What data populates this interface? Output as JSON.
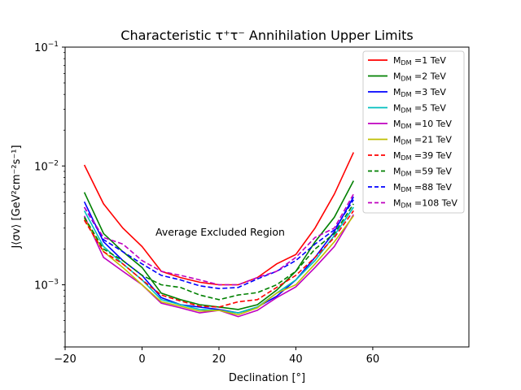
{
  "chart_data": {
    "type": "line",
    "title": "Characteristic τ⁺τ⁻ Annihilation Upper Limits",
    "xlabel": "Declination [°]",
    "ylabel": "J⟨σv⟩   [GeV²cm⁻²s⁻¹]",
    "xlim": [
      -20,
      85
    ],
    "ylim": [
      0.0003,
      0.1
    ],
    "yscale": "log",
    "xticks": [
      -20,
      0,
      20,
      40,
      60
    ],
    "xtick_labels": [
      "−20",
      "0",
      "20",
      "40",
      "60"
    ],
    "yticks": [
      0.001,
      0.01,
      0.1
    ],
    "ytick_labels": [
      {
        "base": "10",
        "exp": "−3"
      },
      {
        "base": "10",
        "exp": "−2"
      },
      {
        "base": "10",
        "exp": "−1"
      }
    ],
    "grid": false,
    "legend_position": "upper-right",
    "annotation": "Average Excluded Region",
    "x": [
      -15,
      -10,
      -5,
      0,
      5,
      10,
      15,
      20,
      25,
      30,
      35,
      40,
      45,
      50,
      55
    ],
    "series": [
      {
        "name_prefix": "M",
        "name_sub": "DM",
        "name_suffix": " =1 TeV",
        "color": "#ff0000",
        "dash": "solid",
        "values": [
          0.0102,
          0.0048,
          0.003,
          0.0021,
          0.0013,
          0.00115,
          0.00105,
          0.001,
          0.001,
          0.00115,
          0.0015,
          0.0018,
          0.003,
          0.0058,
          0.013
        ]
      },
      {
        "name_prefix": "M",
        "name_sub": "DM",
        "name_suffix": " =2 TeV",
        "color": "#008000",
        "dash": "solid",
        "values": [
          0.006,
          0.0027,
          0.0019,
          0.0014,
          0.00085,
          0.00075,
          0.00068,
          0.00065,
          0.00062,
          0.00068,
          0.0009,
          0.0013,
          0.0023,
          0.0037,
          0.0075
        ]
      },
      {
        "name_prefix": "M",
        "name_sub": "DM",
        "name_suffix": " =3 TeV",
        "color": "#0000ff",
        "dash": "solid",
        "values": [
          0.005,
          0.0023,
          0.0016,
          0.0012,
          0.00078,
          0.00068,
          0.00065,
          0.00062,
          0.00058,
          0.00065,
          0.0008,
          0.0011,
          0.0017,
          0.0028,
          0.0055
        ]
      },
      {
        "name_prefix": "M",
        "name_sub": "DM",
        "name_suffix": " =5 TeV",
        "color": "#00bfbf",
        "dash": "solid",
        "values": [
          0.0042,
          0.0021,
          0.0015,
          0.0011,
          0.00075,
          0.00068,
          0.00062,
          0.00061,
          0.00058,
          0.00065,
          0.00085,
          0.0011,
          0.0016,
          0.0026,
          0.0045
        ]
      },
      {
        "name_prefix": "M",
        "name_sub": "DM",
        "name_suffix": " =10 TeV",
        "color": "#bf00bf",
        "dash": "solid",
        "values": [
          0.0038,
          0.0017,
          0.0013,
          0.001,
          0.0007,
          0.00064,
          0.00058,
          0.00061,
          0.00054,
          0.00061,
          0.00078,
          0.00096,
          0.0014,
          0.0021,
          0.0039
        ]
      },
      {
        "name_prefix": "M",
        "name_sub": "DM",
        "name_suffix": " =21 TeV",
        "color": "#bfbf00",
        "dash": "solid",
        "values": [
          0.0036,
          0.0019,
          0.0014,
          0.001,
          0.00072,
          0.00066,
          0.0006,
          0.00061,
          0.00056,
          0.00064,
          0.00085,
          0.001,
          0.0015,
          0.0023,
          0.0038
        ]
      },
      {
        "name_prefix": "M",
        "name_sub": "DM",
        "name_suffix": " =39 TeV",
        "color": "#ff0000",
        "dash": "dashed",
        "values": [
          0.0035,
          0.0019,
          0.0015,
          0.0011,
          0.00082,
          0.00073,
          0.00066,
          0.00065,
          0.00072,
          0.00075,
          0.00095,
          0.0012,
          0.0017,
          0.0025,
          0.0042
        ]
      },
      {
        "name_prefix": "M",
        "name_sub": "DM",
        "name_suffix": " =59 TeV",
        "color": "#008000",
        "dash": "dashed",
        "values": [
          0.0037,
          0.002,
          0.0016,
          0.0012,
          0.001,
          0.00095,
          0.00082,
          0.00075,
          0.00082,
          0.00086,
          0.001,
          0.0013,
          0.002,
          0.0027,
          0.0048
        ]
      },
      {
        "name_prefix": "M",
        "name_sub": "DM",
        "name_suffix": " =88 TeV",
        "color": "#0000ff",
        "dash": "dashed",
        "values": [
          0.0045,
          0.0024,
          0.0019,
          0.0015,
          0.0012,
          0.0011,
          0.00098,
          0.00093,
          0.00095,
          0.00112,
          0.0013,
          0.0016,
          0.0022,
          0.0029,
          0.0052
        ]
      },
      {
        "name_prefix": "M",
        "name_sub": "DM",
        "name_suffix": " =108 TeV",
        "color": "#bf00bf",
        "dash": "dashed",
        "values": [
          0.0045,
          0.0025,
          0.0022,
          0.0016,
          0.0013,
          0.0012,
          0.0011,
          0.001,
          0.001,
          0.00115,
          0.0013,
          0.0017,
          0.0025,
          0.003,
          0.0058
        ]
      }
    ]
  }
}
